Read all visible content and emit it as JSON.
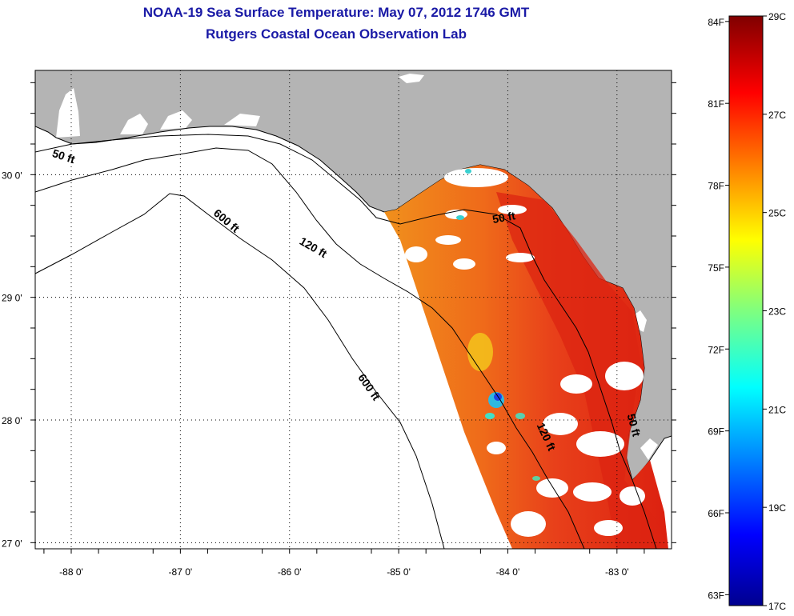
{
  "header": {
    "title": "NOAA-19 Sea Surface Temperature:  May 07, 2012 1746 GMT",
    "subtitle": "Rutgers Coastal Ocean Observation Lab"
  },
  "map": {
    "lon_range": [
      -88.33,
      -82.5
    ],
    "lat_range": [
      26.95,
      30.85
    ],
    "lon_ticks": [
      {
        "value": -88,
        "label": "-88 0'"
      },
      {
        "value": -87,
        "label": "-87 0'"
      },
      {
        "value": -86,
        "label": "-86 0'"
      },
      {
        "value": -85,
        "label": "-85 0'"
      },
      {
        "value": -84,
        "label": "-84 0'"
      },
      {
        "value": -83,
        "label": "-83 0'"
      }
    ],
    "lat_ticks": [
      {
        "value": 30,
        "label": "30 0'"
      },
      {
        "value": 29,
        "label": "29 0'"
      },
      {
        "value": 28,
        "label": "28 0'"
      },
      {
        "value": 27,
        "label": "27 0'"
      }
    ],
    "contours": [
      {
        "name": "50 ft",
        "label": "50 ft"
      },
      {
        "name": "120 ft",
        "label": "120 ft"
      },
      {
        "name": "600 ft",
        "label": "600 ft"
      }
    ],
    "contour_labels": [
      {
        "text": "50 ft",
        "lon": -88.08,
        "lat": 30.12,
        "angle": 18
      },
      {
        "text": "600 ft",
        "lon": -86.6,
        "lat": 29.6,
        "angle": 40
      },
      {
        "text": "120 ft",
        "lon": -85.8,
        "lat": 29.38,
        "angle": 30
      },
      {
        "text": "600 ft",
        "lon": -85.3,
        "lat": 28.25,
        "angle": 55
      },
      {
        "text": "50 ft",
        "lon": -84.03,
        "lat": 29.62,
        "angle": -10
      },
      {
        "text": "120 ft",
        "lon": -83.68,
        "lat": 27.85,
        "angle": 65
      },
      {
        "text": "50 ft",
        "lon": -82.88,
        "lat": 27.95,
        "angle": 75
      }
    ]
  },
  "colorbar": {
    "celsius_labels": [
      {
        "value": 29,
        "label": "29C"
      },
      {
        "value": 27,
        "label": "27C"
      },
      {
        "value": 25,
        "label": "25C"
      },
      {
        "value": 23,
        "label": "23C"
      },
      {
        "value": 21,
        "label": "21C"
      },
      {
        "value": 19,
        "label": "19C"
      },
      {
        "value": 17,
        "label": "17C"
      }
    ],
    "fahrenheit_labels": [
      {
        "value": 84,
        "label": "84F"
      },
      {
        "value": 81,
        "label": "81F"
      },
      {
        "value": 78,
        "label": "78F"
      },
      {
        "value": 75,
        "label": "75F"
      },
      {
        "value": 72,
        "label": "72F"
      },
      {
        "value": 69,
        "label": "69F"
      },
      {
        "value": 66,
        "label": "66F"
      },
      {
        "value": 63,
        "label": "63F"
      }
    ],
    "min_c": 17,
    "max_c": 29
  },
  "colors": {
    "land": "#b4b4b4",
    "title": "#1a1aa6",
    "sst_warm": "#e62a10",
    "sst_mid": "#f08a1a"
  }
}
